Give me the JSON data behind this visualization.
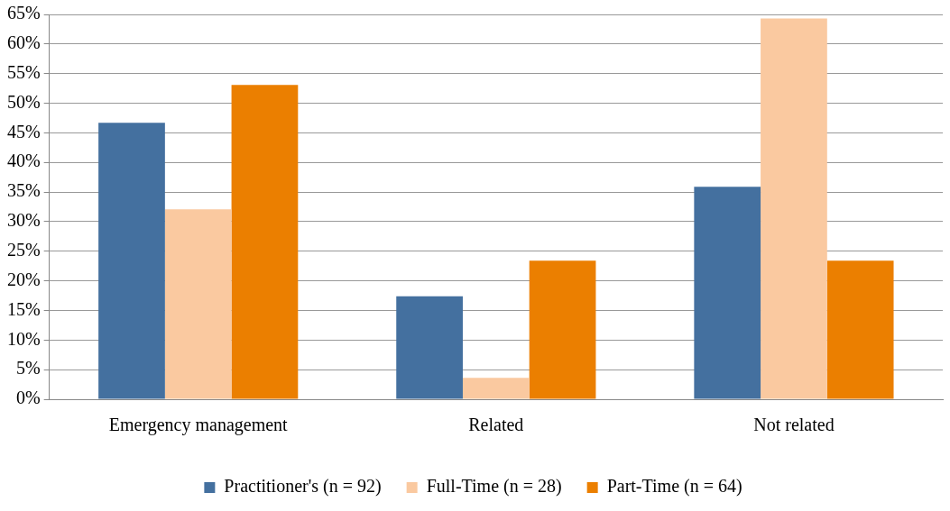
{
  "chart_data": {
    "type": "bar",
    "categories": [
      "Emergency management",
      "Related",
      "Not related"
    ],
    "series": [
      {
        "name": "Practitioner's (n = 92)",
        "color": "#44709f",
        "values": [
          46.7,
          17.4,
          35.9
        ]
      },
      {
        "name": "Full-Time (n = 28)",
        "color": "#fac9a0",
        "values": [
          32.1,
          3.6,
          64.3
        ]
      },
      {
        "name": "Part-Time (n = 64)",
        "color": "#eb7f00",
        "values": [
          53.1,
          23.4,
          23.4
        ]
      }
    ],
    "ylim": [
      0,
      65
    ],
    "yticks": [
      {
        "value": 0,
        "label": "0%"
      },
      {
        "value": 5,
        "label": "5%"
      },
      {
        "value": 10,
        "label": "10%"
      },
      {
        "value": 15,
        "label": "15%"
      },
      {
        "value": 20,
        "label": "20%"
      },
      {
        "value": 25,
        "label": "25%"
      },
      {
        "value": 30,
        "label": "30%"
      },
      {
        "value": 35,
        "label": "35%"
      },
      {
        "value": 40,
        "label": "40%"
      },
      {
        "value": 45,
        "label": "45%"
      },
      {
        "value": 50,
        "label": "50%"
      },
      {
        "value": 55,
        "label": "55%"
      },
      {
        "value": 60,
        "label": "60%"
      },
      {
        "value": 65,
        "label": "65%"
      }
    ],
    "grid": "y",
    "legend": "bottom"
  }
}
